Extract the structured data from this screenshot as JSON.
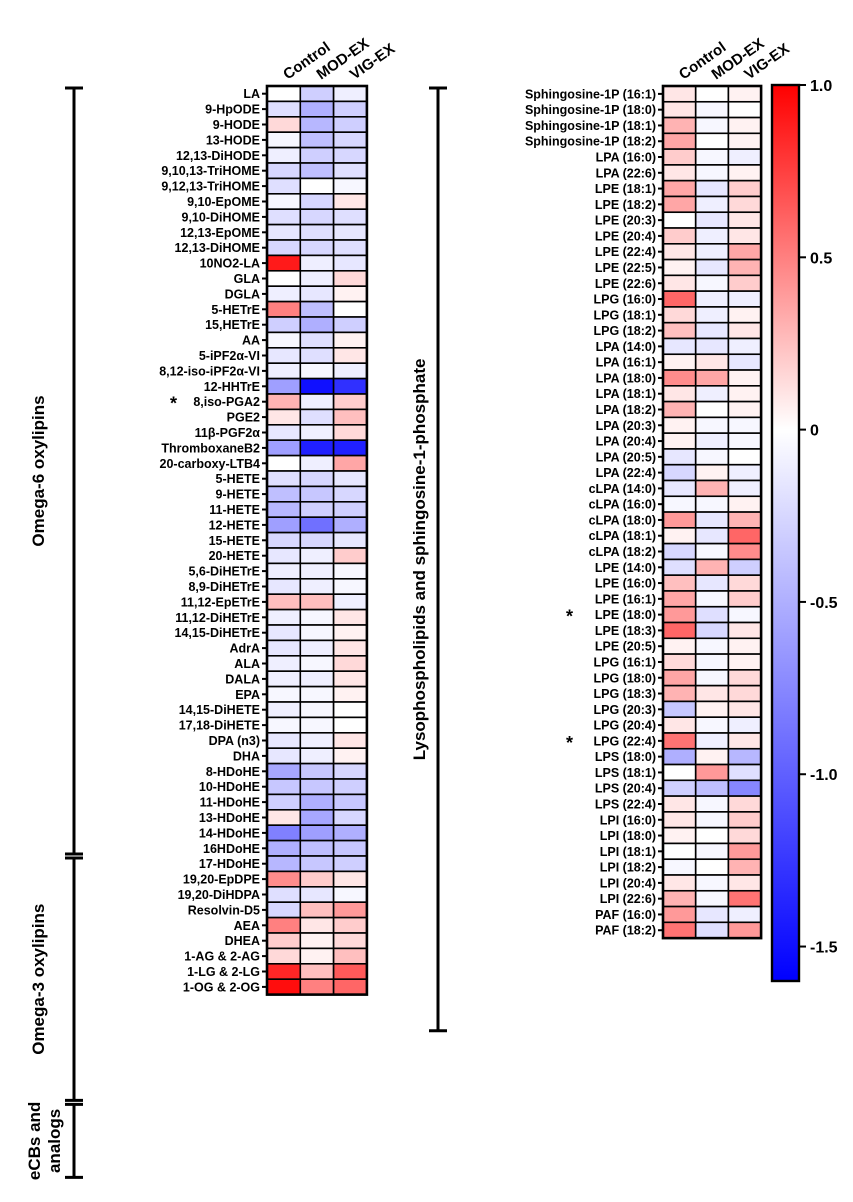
{
  "chart_data": [
    {
      "type": "heatmap",
      "columns": [
        "Control",
        "MOD-EX",
        "VIG-EX"
      ],
      "groups": [
        {
          "label": "Omega-6 oxylipins",
          "start": 0,
          "end": 49
        },
        {
          "label": "Omega-3 oxylipins",
          "start": 50,
          "end": 65
        },
        {
          "label": "eCBs and analogs",
          "start": 66,
          "end": 70
        }
      ],
      "rows": [
        {
          "label": "LA",
          "values": [
            0.0,
            -0.3,
            -0.1
          ]
        },
        {
          "label": "9-HpODE",
          "values": [
            -0.2,
            -0.5,
            -0.3
          ]
        },
        {
          "label": "9-HODE",
          "values": [
            0.15,
            -0.45,
            -0.3
          ]
        },
        {
          "label": "13-HODE",
          "values": [
            -0.05,
            -0.4,
            -0.25
          ]
        },
        {
          "label": "12,13-DiHODE",
          "values": [
            -0.1,
            -0.3,
            -0.25
          ]
        },
        {
          "label": "9,10,13-TriHOME",
          "values": [
            -0.25,
            -0.4,
            -0.2
          ]
        },
        {
          "label": "9,12,13-TriHOME",
          "values": [
            -0.2,
            0.0,
            -0.05
          ]
        },
        {
          "label": "9,10-EpOME",
          "values": [
            -0.05,
            -0.25,
            0.1
          ]
        },
        {
          "label": "9,10-DiHOME",
          "values": [
            -0.2,
            -0.25,
            -0.2
          ]
        },
        {
          "label": "12,13-EpOME",
          "values": [
            -0.15,
            -0.2,
            -0.15
          ]
        },
        {
          "label": "12,13-DiHOME",
          "values": [
            -0.25,
            -0.25,
            -0.2
          ]
        },
        {
          "label": "10NO2-LA",
          "values": [
            0.9,
            -0.1,
            -0.15
          ]
        },
        {
          "label": "GLA",
          "values": [
            0.0,
            -0.1,
            0.15
          ]
        },
        {
          "label": "DGLA",
          "values": [
            -0.1,
            -0.15,
            0.05
          ]
        },
        {
          "label": "5-HETrE",
          "values": [
            0.5,
            -0.4,
            0.0
          ]
        },
        {
          "label": "15,HETrE",
          "values": [
            -0.3,
            -0.5,
            -0.3
          ]
        },
        {
          "label": "AA",
          "values": [
            -0.05,
            -0.2,
            0.05
          ]
        },
        {
          "label": "5-iPF2α-VI",
          "values": [
            -0.15,
            -0.2,
            0.1
          ]
        },
        {
          "label": "8,12-iso-iPF2α-VI",
          "values": [
            -0.1,
            -0.05,
            -0.1
          ]
        },
        {
          "label": "12-HHTrE",
          "values": [
            -0.6,
            -1.5,
            -1.3
          ]
        },
        {
          "label": "8,iso-PGA2",
          "values": [
            0.3,
            -0.1,
            0.2
          ],
          "star": true
        },
        {
          "label": "PGE2",
          "values": [
            0.1,
            -0.2,
            0.25
          ]
        },
        {
          "label": "11β-PGF2α",
          "values": [
            -0.15,
            -0.1,
            0.15
          ]
        },
        {
          "label": "ThromboxaneB2",
          "values": [
            -0.6,
            -1.4,
            -1.4
          ]
        },
        {
          "label": "20-carboxy-LTB4",
          "values": [
            0.0,
            -0.1,
            0.35
          ]
        },
        {
          "label": "5-HETE",
          "values": [
            -0.2,
            -0.25,
            -0.15
          ]
        },
        {
          "label": "9-HETE",
          "values": [
            -0.4,
            -0.35,
            -0.25
          ]
        },
        {
          "label": "11-HETE",
          "values": [
            -0.45,
            -0.3,
            -0.3
          ]
        },
        {
          "label": "12-HETE",
          "values": [
            -0.6,
            -0.9,
            -0.5
          ]
        },
        {
          "label": "15-HETE",
          "values": [
            -0.25,
            -0.25,
            -0.15
          ]
        },
        {
          "label": "20-HETE",
          "values": [
            -0.15,
            -0.1,
            0.2
          ]
        },
        {
          "label": "5,6-DiHETrE",
          "values": [
            -0.1,
            -0.1,
            -0.05
          ]
        },
        {
          "label": "8,9-DiHETrE",
          "values": [
            -0.15,
            -0.1,
            -0.05
          ]
        },
        {
          "label": "11,12-EpETrE",
          "values": [
            0.25,
            0.25,
            -0.1
          ]
        },
        {
          "label": "11,12-DiHETrE",
          "values": [
            -0.1,
            -0.05,
            0.1
          ]
        },
        {
          "label": "14,15-DiHETrE",
          "values": [
            -0.15,
            -0.05,
            0.05
          ]
        },
        {
          "label": "AdrA",
          "values": [
            -0.15,
            -0.1,
            0.1
          ]
        },
        {
          "label": "ALA",
          "values": [
            -0.1,
            -0.05,
            0.15
          ]
        },
        {
          "label": "DALA",
          "values": [
            -0.1,
            -0.1,
            0.1
          ]
        },
        {
          "label": "EPA",
          "values": [
            -0.05,
            -0.05,
            0.05
          ]
        },
        {
          "label": "14,15-DiHETE",
          "values": [
            -0.1,
            -0.05,
            0.0
          ]
        },
        {
          "label": "17,18-DiHETE",
          "values": [
            -0.05,
            -0.05,
            0.0
          ]
        },
        {
          "label": "DPA (n3)",
          "values": [
            -0.15,
            -0.1,
            0.1
          ]
        },
        {
          "label": "DHA",
          "values": [
            -0.15,
            -0.1,
            0.05
          ]
        },
        {
          "label": "8-HDoHE",
          "values": [
            -0.55,
            -0.35,
            -0.25
          ]
        },
        {
          "label": "10-HDoHE",
          "values": [
            -0.35,
            -0.35,
            -0.3
          ]
        },
        {
          "label": "11-HDoHE",
          "values": [
            -0.3,
            -0.5,
            -0.35
          ]
        },
        {
          "label": "13-HDoHE",
          "values": [
            0.1,
            -0.55,
            -0.25
          ]
        },
        {
          "label": "14-HDoHE",
          "values": [
            -0.8,
            -0.6,
            -0.5
          ]
        },
        {
          "label": "16HDoHE",
          "values": [
            -0.5,
            -0.4,
            -0.35
          ]
        },
        {
          "label": "17-HDoHE",
          "values": [
            -0.45,
            -0.35,
            -0.3
          ]
        },
        {
          "label": "19,20-EpDPE",
          "values": [
            0.45,
            0.2,
            0.1
          ]
        },
        {
          "label": "19,20-DiHDPA",
          "values": [
            -0.2,
            -0.15,
            -0.05
          ]
        },
        {
          "label": "Resolvin-D5",
          "values": [
            -0.25,
            0.25,
            0.4
          ]
        },
        {
          "label": "AEA",
          "values": [
            0.5,
            0.1,
            0.2
          ]
        },
        {
          "label": "DHEA",
          "values": [
            0.2,
            0.05,
            0.15
          ]
        },
        {
          "label": "1-AG & 2-AG",
          "values": [
            0.15,
            0.05,
            0.25
          ]
        },
        {
          "label": "1-LG & 2-LG",
          "values": [
            0.85,
            0.25,
            0.65
          ]
        },
        {
          "label": "1-OG & 2-OG",
          "values": [
            0.95,
            0.5,
            0.6
          ]
        }
      ]
    },
    {
      "type": "heatmap",
      "columns": [
        "Control",
        "MOD-EX",
        "VIG-EX"
      ],
      "groups": [
        {
          "label": "Lysophospholipids and sphingosine-1-phosphate",
          "start": 0,
          "end": 59
        }
      ],
      "rows": [
        {
          "label": "Sphingosine-1P (16:1)",
          "values": [
            0.1,
            0.0,
            0.05
          ]
        },
        {
          "label": "Sphingosine-1P (18:0)",
          "values": [
            0.1,
            -0.05,
            0.0
          ]
        },
        {
          "label": "Sphingosine-1P (18:1)",
          "values": [
            0.3,
            -0.05,
            0.05
          ]
        },
        {
          "label": "Sphingosine-1P (18:2)",
          "values": [
            0.35,
            0.0,
            0.05
          ]
        },
        {
          "label": "LPA (16:0)",
          "values": [
            0.2,
            -0.05,
            -0.1
          ]
        },
        {
          "label": "LPA (22:6)",
          "values": [
            0.1,
            -0.05,
            0.05
          ]
        },
        {
          "label": "LPE (18:1)",
          "values": [
            0.35,
            -0.15,
            0.2
          ]
        },
        {
          "label": "LPE (18:2)",
          "values": [
            0.35,
            -0.1,
            0.15
          ]
        },
        {
          "label": "LPE (20:3)",
          "values": [
            0.0,
            -0.15,
            0.1
          ]
        },
        {
          "label": "LPE (20:4)",
          "values": [
            0.2,
            -0.1,
            0.1
          ]
        },
        {
          "label": "LPE (22:4)",
          "values": [
            0.1,
            -0.1,
            0.35
          ]
        },
        {
          "label": "LPE (22:5)",
          "values": [
            0.05,
            -0.15,
            0.3
          ]
        },
        {
          "label": "LPE (22:6)",
          "values": [
            0.1,
            -0.05,
            0.2
          ]
        },
        {
          "label": "LPG (16:0)",
          "values": [
            0.6,
            -0.1,
            -0.1
          ]
        },
        {
          "label": "LPG (18:1)",
          "values": [
            0.15,
            -0.1,
            0.05
          ]
        },
        {
          "label": "LPG (18:2)",
          "values": [
            0.25,
            -0.15,
            0.1
          ]
        },
        {
          "label": "LPA (14:0)",
          "values": [
            -0.15,
            -0.15,
            -0.1
          ]
        },
        {
          "label": "LPA (16:1)",
          "values": [
            0.05,
            0.1,
            -0.15
          ]
        },
        {
          "label": "LPA (18:0)",
          "values": [
            0.45,
            0.35,
            0.05
          ]
        },
        {
          "label": "LPA (18:1)",
          "values": [
            0.1,
            -0.1,
            0.05
          ]
        },
        {
          "label": "LPA (18:2)",
          "values": [
            0.3,
            0.0,
            0.05
          ]
        },
        {
          "label": "LPA (20:3)",
          "values": [
            0.05,
            -0.05,
            -0.05
          ]
        },
        {
          "label": "LPA (20:4)",
          "values": [
            0.05,
            -0.1,
            -0.05
          ]
        },
        {
          "label": "LPA (20:5)",
          "values": [
            -0.15,
            -0.05,
            0.0
          ]
        },
        {
          "label": "LPA (22:4)",
          "values": [
            -0.25,
            0.05,
            -0.1
          ]
        },
        {
          "label": "cLPA (14:0)",
          "values": [
            -0.15,
            0.3,
            -0.1
          ]
        },
        {
          "label": "cLPA (16:0)",
          "values": [
            -0.05,
            -0.05,
            0.05
          ]
        },
        {
          "label": "cLPA (18:0)",
          "values": [
            0.4,
            -0.15,
            0.3
          ]
        },
        {
          "label": "cLPA (18:1)",
          "values": [
            0.05,
            -0.15,
            0.6
          ]
        },
        {
          "label": "cLPA (18:2)",
          "values": [
            -0.25,
            -0.05,
            0.45
          ]
        },
        {
          "label": "LPE (14:0)",
          "values": [
            -0.2,
            0.3,
            -0.3
          ]
        },
        {
          "label": "LPE (16:0)",
          "values": [
            0.25,
            -0.15,
            0.15
          ]
        },
        {
          "label": "LPE (16:1)",
          "values": [
            0.35,
            -0.05,
            0.2
          ]
        },
        {
          "label": "LPE (18:0)",
          "values": [
            0.4,
            -0.2,
            -0.05
          ],
          "star": true
        },
        {
          "label": "LPE (18:3)",
          "values": [
            0.6,
            -0.25,
            0.1
          ]
        },
        {
          "label": "LPE (20:5)",
          "values": [
            0.05,
            -0.05,
            0.05
          ]
        },
        {
          "label": "LPG (16:1)",
          "values": [
            0.15,
            -0.05,
            0.05
          ]
        },
        {
          "label": "LPG (18:0)",
          "values": [
            0.35,
            -0.05,
            0.15
          ]
        },
        {
          "label": "LPG (18:3)",
          "values": [
            0.3,
            0.1,
            0.15
          ]
        },
        {
          "label": "LPG (20:3)",
          "values": [
            -0.35,
            0.05,
            0.1
          ]
        },
        {
          "label": "LPG (20:4)",
          "values": [
            0.1,
            -0.05,
            -0.1
          ]
        },
        {
          "label": "LPG (22:4)",
          "values": [
            0.55,
            -0.1,
            0.1
          ],
          "star": true
        },
        {
          "label": "LPS (18:0)",
          "values": [
            -0.5,
            0.05,
            -0.45
          ]
        },
        {
          "label": "LPS (18:1)",
          "values": [
            0.0,
            0.4,
            -0.2
          ]
        },
        {
          "label": "LPS (20:4)",
          "values": [
            -0.3,
            -0.4,
            -0.75
          ]
        },
        {
          "label": "LPS (22:4)",
          "values": [
            0.1,
            -0.05,
            0.15
          ]
        },
        {
          "label": "LPI (16:0)",
          "values": [
            0.1,
            -0.05,
            0.2
          ]
        },
        {
          "label": "LPI (18:0)",
          "values": [
            0.05,
            0.0,
            0.15
          ]
        },
        {
          "label": "LPI (18:1)",
          "values": [
            0.0,
            -0.05,
            0.4
          ]
        },
        {
          "label": "LPI (18:2)",
          "values": [
            -0.05,
            0.0,
            0.3
          ]
        },
        {
          "label": "LPI (20:4)",
          "values": [
            0.1,
            -0.05,
            0.1
          ]
        },
        {
          "label": "LPI (22:6)",
          "values": [
            0.3,
            -0.05,
            0.55
          ]
        },
        {
          "label": "PAF (16:0)",
          "values": [
            0.4,
            -0.15,
            -0.1
          ]
        },
        {
          "label": "PAF (18:2)",
          "values": [
            0.55,
            -0.2,
            0.4
          ]
        }
      ]
    }
  ],
  "colorbar": {
    "range": [
      -1.6,
      1.0
    ],
    "ticks": [
      "1.0",
      "0.5",
      "0",
      "-0.5",
      "-1.0",
      "-1.5"
    ],
    "tick_values": [
      1.0,
      0.5,
      0.0,
      -0.5,
      -1.0,
      -1.5
    ],
    "colors": {
      "high": "#ff0000",
      "mid": "#ffffff",
      "low": "#0000ff"
    }
  },
  "star_label": "*"
}
